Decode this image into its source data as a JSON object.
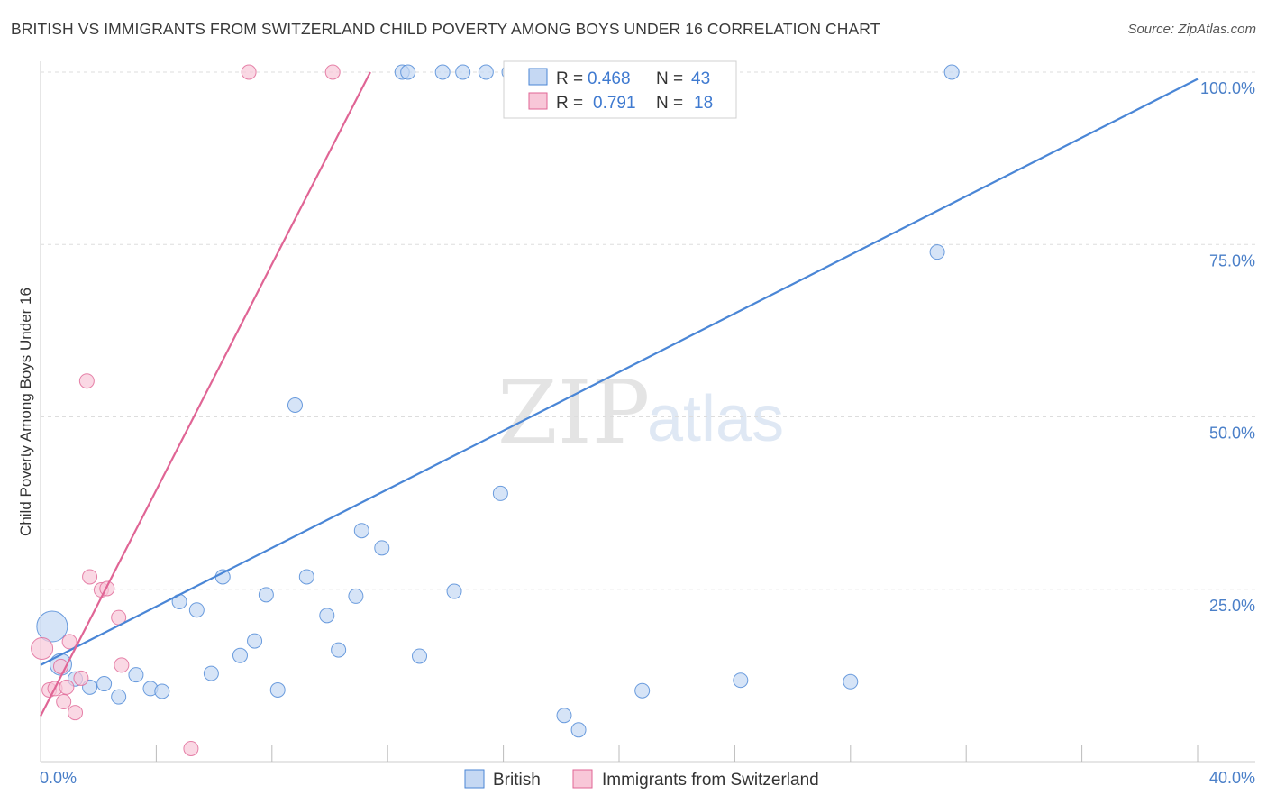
{
  "header": {
    "title": "BRITISH VS IMMIGRANTS FROM SWITZERLAND CHILD POVERTY AMONG BOYS UNDER 16 CORRELATION CHART",
    "source": "Source: ZipAtlas.com"
  },
  "watermark": {
    "zip": "ZIP",
    "atlas": "atlas"
  },
  "chart_data": {
    "type": "scatter",
    "title": "BRITISH VS IMMIGRANTS FROM SWITZERLAND CHILD POVERTY AMONG BOYS UNDER 16 CORRELATION CHART",
    "xlabel": "",
    "ylabel": "Child Poverty Among Boys Under 16",
    "xlim": [
      0,
      40
    ],
    "ylim": [
      0,
      100
    ],
    "x_tick_labels": {
      "min": "0.0%",
      "max": "40.0%"
    },
    "y_ticks": [
      25,
      50,
      75,
      100
    ],
    "y_tick_labels": [
      "25.0%",
      "50.0%",
      "75.0%",
      "100.0%"
    ],
    "grid": true,
    "legend_position": "bottom-center",
    "stats_box": {
      "r_label": "R =",
      "n_label": "N =",
      "rows": [
        {
          "series": "British",
          "r": "0.468",
          "n": "43"
        },
        {
          "series": "Immigrants from Switzerland",
          "r": "0.791",
          "n": "18"
        }
      ]
    },
    "series": [
      {
        "name": "British",
        "color": "#4a86d6",
        "fill": "#c5d8f3",
        "trend": {
          "x": [
            0,
            40
          ],
          "y": [
            14.0,
            99.0
          ]
        },
        "points": [
          {
            "x": 0.4,
            "y": 19.6,
            "size": "large"
          },
          {
            "x": 0.7,
            "y": 14.1,
            "size": "medium"
          },
          {
            "x": 1.2,
            "y": 12.0
          },
          {
            "x": 1.7,
            "y": 10.8
          },
          {
            "x": 2.2,
            "y": 11.3
          },
          {
            "x": 2.7,
            "y": 9.4
          },
          {
            "x": 3.3,
            "y": 12.6
          },
          {
            "x": 3.8,
            "y": 10.6
          },
          {
            "x": 4.2,
            "y": 10.2
          },
          {
            "x": 4.8,
            "y": 23.2
          },
          {
            "x": 5.4,
            "y": 22.0
          },
          {
            "x": 5.9,
            "y": 12.8
          },
          {
            "x": 6.3,
            "y": 26.8
          },
          {
            "x": 6.9,
            "y": 15.4
          },
          {
            "x": 7.4,
            "y": 17.5
          },
          {
            "x": 7.8,
            "y": 24.2
          },
          {
            "x": 8.2,
            "y": 10.4
          },
          {
            "x": 8.8,
            "y": 51.7
          },
          {
            "x": 9.2,
            "y": 26.8
          },
          {
            "x": 9.9,
            "y": 21.2
          },
          {
            "x": 10.3,
            "y": 16.2
          },
          {
            "x": 10.9,
            "y": 24.0
          },
          {
            "x": 11.1,
            "y": 33.5
          },
          {
            "x": 11.8,
            "y": 31.0
          },
          {
            "x": 12.5,
            "y": 100
          },
          {
            "x": 12.7,
            "y": 100
          },
          {
            "x": 13.1,
            "y": 15.3
          },
          {
            "x": 13.9,
            "y": 100
          },
          {
            "x": 14.3,
            "y": 24.7
          },
          {
            "x": 14.6,
            "y": 100
          },
          {
            "x": 15.4,
            "y": 100
          },
          {
            "x": 15.9,
            "y": 38.9
          },
          {
            "x": 16.2,
            "y": 100
          },
          {
            "x": 16.7,
            "y": 100
          },
          {
            "x": 17.2,
            "y": 100
          },
          {
            "x": 18.1,
            "y": 6.7
          },
          {
            "x": 18.6,
            "y": 4.6
          },
          {
            "x": 20.8,
            "y": 10.3
          },
          {
            "x": 22.0,
            "y": 100
          },
          {
            "x": 24.2,
            "y": 11.8
          },
          {
            "x": 28.0,
            "y": 11.6
          },
          {
            "x": 31.0,
            "y": 73.9
          },
          {
            "x": 31.5,
            "y": 100
          }
        ]
      },
      {
        "name": "Immigrants from Switzerland",
        "color": "#e06595",
        "fill": "#f8c7d8",
        "trend": {
          "x": [
            0,
            11.4
          ],
          "y": [
            6.6,
            100
          ]
        },
        "points": [
          {
            "x": 0.05,
            "y": 16.4,
            "size": "medium"
          },
          {
            "x": 0.3,
            "y": 10.4
          },
          {
            "x": 0.5,
            "y": 10.6
          },
          {
            "x": 0.7,
            "y": 13.8
          },
          {
            "x": 0.8,
            "y": 8.7
          },
          {
            "x": 0.9,
            "y": 10.8
          },
          {
            "x": 1.0,
            "y": 17.4
          },
          {
            "x": 1.2,
            "y": 7.1
          },
          {
            "x": 1.4,
            "y": 12.1
          },
          {
            "x": 1.6,
            "y": 55.2
          },
          {
            "x": 1.7,
            "y": 26.8
          },
          {
            "x": 2.1,
            "y": 24.9
          },
          {
            "x": 2.3,
            "y": 25.1
          },
          {
            "x": 2.7,
            "y": 20.9
          },
          {
            "x": 2.8,
            "y": 14.0
          },
          {
            "x": 5.2,
            "y": 1.9
          },
          {
            "x": 7.2,
            "y": 100
          },
          {
            "x": 10.1,
            "y": 100
          }
        ]
      }
    ]
  }
}
